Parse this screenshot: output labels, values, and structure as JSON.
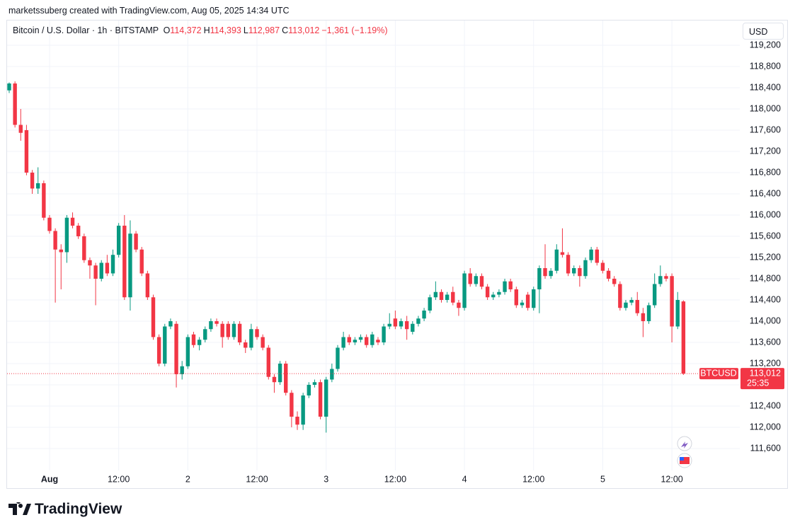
{
  "chart_data": {
    "type": "candlestick",
    "attribution": "marketssuberg created with TradingView.com, Aug 05, 2025 14:34 UTC",
    "title": "Bitcoin / U.S. Dollar · 1h · BITSTAMP",
    "ohlc_legend": [
      {
        "key": "O",
        "value": "114,372"
      },
      {
        "key": "H",
        "value": "114,393"
      },
      {
        "key": "L",
        "value": "112,987"
      },
      {
        "key": "C",
        "value": "113,012"
      }
    ],
    "change": "−1,361 (−1.19%)",
    "currency": "USD",
    "symbol": "BTCUSD",
    "last_price": {
      "value": 113012,
      "label": "113,012"
    },
    "countdown": "25:35",
    "up_color": "#089981",
    "down_color": "#f23645",
    "grid": true,
    "categories": [
      null,
      null,
      null,
      null,
      null,
      null,
      null,
      "Aug",
      null,
      null,
      null,
      null,
      null,
      null,
      null,
      null,
      null,
      null,
      null,
      "12:00",
      null,
      null,
      null,
      null,
      null,
      null,
      null,
      null,
      null,
      null,
      null,
      "2",
      null,
      null,
      null,
      null,
      null,
      null,
      null,
      null,
      null,
      null,
      null,
      "12:00",
      null,
      null,
      null,
      null,
      null,
      null,
      null,
      null,
      null,
      null,
      null,
      "3",
      null,
      null,
      null,
      null,
      null,
      null,
      null,
      null,
      null,
      null,
      null,
      "12:00",
      null,
      null,
      null,
      null,
      null,
      null,
      null,
      null,
      null,
      null,
      null,
      "4",
      null,
      null,
      null,
      null,
      null,
      null,
      null,
      null,
      null,
      null,
      null,
      "12:00",
      null,
      null,
      null,
      null,
      null,
      null,
      null,
      null,
      null,
      null,
      null,
      "5",
      null,
      null,
      null,
      null,
      null,
      null,
      null,
      null,
      null,
      null,
      null,
      "12:00",
      null,
      null
    ],
    "ohlc": [
      [
        118350,
        118500,
        118300,
        118480
      ],
      [
        118480,
        118520,
        117650,
        117700
      ],
      [
        117700,
        118000,
        117400,
        117550
      ],
      [
        117600,
        117700,
        116750,
        116800
      ],
      [
        116800,
        116850,
        116400,
        116500
      ],
      [
        116500,
        116900,
        116400,
        116600
      ],
      [
        116600,
        116650,
        115900,
        115950
      ],
      [
        115950,
        116000,
        115650,
        115700
      ],
      [
        115700,
        115750,
        114350,
        115350
      ],
      [
        115350,
        115450,
        114600,
        115300
      ],
      [
        115300,
        116000,
        115100,
        115950
      ],
      [
        115950,
        116050,
        115750,
        115800
      ],
      [
        115800,
        115850,
        115550,
        115600
      ],
      [
        115600,
        115650,
        115100,
        115150
      ],
      [
        115150,
        115200,
        114800,
        115050
      ],
      [
        115050,
        115100,
        114300,
        114800
      ],
      [
        114800,
        115150,
        114750,
        115100
      ],
      [
        115100,
        115250,
        114850,
        114900
      ],
      [
        114900,
        115350,
        114850,
        115250
      ],
      [
        115250,
        115850,
        115200,
        115800
      ],
      [
        115800,
        116000,
        114400,
        114450
      ],
      [
        114450,
        115900,
        114200,
        115650
      ],
      [
        115650,
        115700,
        115300,
        115350
      ],
      [
        115350,
        115400,
        114850,
        114900
      ],
      [
        114900,
        114950,
        114400,
        114450
      ],
      [
        114450,
        114500,
        113650,
        113700
      ],
      [
        113700,
        113750,
        113150,
        113200
      ],
      [
        113200,
        113950,
        113150,
        113900
      ],
      [
        113900,
        114050,
        113850,
        114000
      ],
      [
        113950,
        114000,
        112750,
        113000
      ],
      [
        113000,
        113250,
        112900,
        113150
      ],
      [
        113150,
        113750,
        113100,
        113700
      ],
      [
        113750,
        113800,
        113500,
        113550
      ],
      [
        113550,
        113700,
        113450,
        113650
      ],
      [
        113650,
        113900,
        113600,
        113850
      ],
      [
        113850,
        114050,
        113800,
        114000
      ],
      [
        114000,
        114050,
        113900,
        113950
      ],
      [
        113950,
        114000,
        113500,
        113700
      ],
      [
        113950,
        114000,
        113650,
        113700
      ],
      [
        113700,
        114000,
        113650,
        113950
      ],
      [
        113950,
        114000,
        113550,
        113600
      ],
      [
        113600,
        113650,
        113400,
        113500
      ],
      [
        113500,
        113950,
        113450,
        113850
      ],
      [
        113850,
        113900,
        113650,
        113700
      ],
      [
        113700,
        113750,
        113450,
        113500
      ],
      [
        113500,
        113550,
        112900,
        112950
      ],
      [
        112950,
        113000,
        112650,
        112850
      ],
      [
        112850,
        113250,
        112800,
        113200
      ],
      [
        113200,
        113250,
        112600,
        112650
      ],
      [
        112650,
        112700,
        112000,
        112200
      ],
      [
        112200,
        112300,
        111950,
        112050
      ],
      [
        112050,
        112650,
        111950,
        112600
      ],
      [
        112600,
        112850,
        112550,
        112800
      ],
      [
        112800,
        112900,
        112750,
        112850
      ],
      [
        112850,
        112900,
        112150,
        112200
      ],
      [
        112200,
        112950,
        111900,
        112900
      ],
      [
        112900,
        113200,
        112850,
        113100
      ],
      [
        113100,
        113550,
        113050,
        113500
      ],
      [
        113500,
        113800,
        113450,
        113700
      ],
      [
        113700,
        113750,
        113550,
        113600
      ],
      [
        113600,
        113700,
        113550,
        113650
      ],
      [
        113650,
        113750,
        113600,
        113700
      ],
      [
        113700,
        113750,
        113500,
        113550
      ],
      [
        113550,
        113800,
        113500,
        113750
      ],
      [
        113650,
        113700,
        113550,
        113600
      ],
      [
        113600,
        113950,
        113550,
        113900
      ],
      [
        113900,
        114150,
        113850,
        113950
      ],
      [
        114050,
        114200,
        113850,
        113900
      ],
      [
        113900,
        114050,
        113850,
        114000
      ],
      [
        114000,
        114100,
        113650,
        113850
      ],
      [
        113800,
        114000,
        113750,
        113950
      ],
      [
        113950,
        114100,
        113900,
        114050
      ],
      [
        114050,
        114250,
        114000,
        114200
      ],
      [
        114200,
        114500,
        114150,
        114450
      ],
      [
        114450,
        114750,
        114400,
        114550
      ],
      [
        114550,
        114600,
        114350,
        114400
      ],
      [
        114400,
        114550,
        114350,
        114500
      ],
      [
        114550,
        114650,
        114300,
        114350
      ],
      [
        114350,
        114400,
        114100,
        114250
      ],
      [
        114250,
        114950,
        114200,
        114900
      ],
      [
        114900,
        115000,
        114650,
        114700
      ],
      [
        114700,
        114900,
        114650,
        114850
      ],
      [
        114850,
        114900,
        114600,
        114650
      ],
      [
        114650,
        114700,
        114400,
        114450
      ],
      [
        114450,
        114550,
        114400,
        114500
      ],
      [
        114500,
        114600,
        114450,
        114550
      ],
      [
        114550,
        114800,
        114500,
        114750
      ],
      [
        114750,
        114800,
        114550,
        114600
      ],
      [
        114600,
        114650,
        114250,
        114300
      ],
      [
        114300,
        114400,
        114250,
        114350
      ],
      [
        114500,
        114550,
        114200,
        114250
      ],
      [
        114250,
        114650,
        114200,
        114600
      ],
      [
        114600,
        115050,
        114150,
        115000
      ],
      [
        115000,
        115450,
        114800,
        114850
      ],
      [
        114850,
        115000,
        114800,
        114950
      ],
      [
        114950,
        115450,
        114900,
        115350
      ],
      [
        115300,
        115750,
        115200,
        115250
      ],
      [
        115250,
        115300,
        114850,
        114900
      ],
      [
        114900,
        115050,
        114850,
        115000
      ],
      [
        115000,
        115050,
        114650,
        114850
      ],
      [
        114850,
        115200,
        114800,
        115150
      ],
      [
        115150,
        115400,
        115100,
        115350
      ],
      [
        115350,
        115400,
        115050,
        115100
      ],
      [
        115100,
        115150,
        114900,
        114950
      ],
      [
        114950,
        115000,
        114750,
        114800
      ],
      [
        114800,
        114850,
        114650,
        114700
      ],
      [
        114700,
        114750,
        114200,
        114250
      ],
      [
        114250,
        114400,
        114200,
        114350
      ],
      [
        114350,
        114450,
        114300,
        114400
      ],
      [
        114400,
        114550,
        114100,
        114150
      ],
      [
        114150,
        114250,
        113700,
        114000
      ],
      [
        114000,
        114350,
        113950,
        114300
      ],
      [
        114300,
        114900,
        114250,
        114700
      ],
      [
        114700,
        115050,
        114650,
        114850
      ],
      [
        114850,
        114900,
        114750,
        114800
      ],
      [
        114850,
        114900,
        113600,
        113900
      ],
      [
        113900,
        114550,
        113850,
        114400
      ],
      [
        114372,
        114393,
        112987,
        113012
      ]
    ],
    "ylim": [
      110853,
      119360
    ],
    "yticks": [
      {
        "value": 111600,
        "label": "111,600"
      },
      {
        "value": 112000,
        "label": "112,000"
      },
      {
        "value": 112400,
        "label": "112,400"
      },
      {
        "value": 112800,
        "label": "112,800"
      },
      {
        "value": 113200,
        "label": "113,200"
      },
      {
        "value": 113600,
        "label": "113,600"
      },
      {
        "value": 114000,
        "label": "114,000"
      },
      {
        "value": 114400,
        "label": "114,400"
      },
      {
        "value": 114800,
        "label": "114,800"
      },
      {
        "value": 115200,
        "label": "115,200"
      },
      {
        "value": 115600,
        "label": "115,600"
      },
      {
        "value": 116000,
        "label": "116,000"
      },
      {
        "value": 116400,
        "label": "116,400"
      },
      {
        "value": 116800,
        "label": "116,800"
      },
      {
        "value": 117200,
        "label": "117,200"
      },
      {
        "value": 117600,
        "label": "117,600"
      },
      {
        "value": 118000,
        "label": "118,000"
      },
      {
        "value": 118400,
        "label": "118,400"
      },
      {
        "value": 118800,
        "label": "118,800"
      },
      {
        "value": 119200,
        "label": "119,200"
      }
    ]
  },
  "footer": {
    "brand": "TradingView"
  }
}
